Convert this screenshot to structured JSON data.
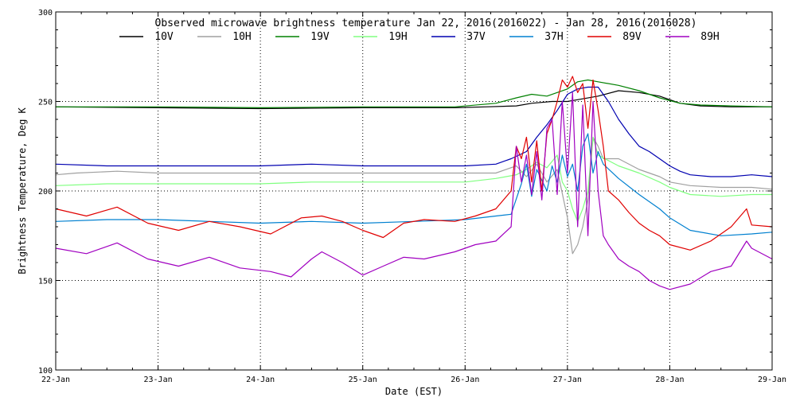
{
  "chart_data": {
    "type": "line",
    "title": "Observed microwave brightness temperature Jan 22, 2016(2016022) - Jan 28, 2016(2016028)",
    "xlabel": "Date (EST)",
    "ylabel": "Brightness Temperature, Deg K",
    "xlim": [
      0,
      7
    ],
    "x_ticks": [
      0,
      1,
      2,
      3,
      4,
      5,
      6,
      7
    ],
    "x_tick_labels": [
      "22-Jan",
      "23-Jan",
      "24-Jan",
      "25-Jan",
      "26-Jan",
      "27-Jan",
      "28-Jan",
      "29-Jan"
    ],
    "ylim": [
      100,
      300
    ],
    "y_ticks": [
      100,
      150,
      200,
      250,
      300
    ],
    "grid": true,
    "legend": "top",
    "series": [
      {
        "name": "10V",
        "color": "#000000",
        "x": [
          0,
          1,
          2,
          3,
          3.9,
          4.2,
          4.5,
          4.65,
          4.85,
          5.0,
          5.1,
          5.3,
          5.5,
          5.7,
          5.9,
          6.1,
          6.3,
          6.6,
          7.0
        ],
        "y": [
          247,
          246.5,
          246,
          246.5,
          246.5,
          247,
          247.5,
          249,
          250,
          250,
          251,
          253,
          256,
          255,
          253,
          249,
          247.5,
          247,
          247
        ]
      },
      {
        "name": "10H",
        "color": "#a0a0a0",
        "x": [
          0,
          0.2,
          0.6,
          1.0,
          1.5,
          2.0,
          2.5,
          3.0,
          3.5,
          4.0,
          4.3,
          4.5,
          4.6,
          4.7,
          4.8,
          4.9,
          5.0,
          5.05,
          5.1,
          5.15,
          5.2,
          5.25,
          5.3,
          5.35,
          5.5,
          5.7,
          5.9,
          6.0,
          6.2,
          6.5,
          6.8,
          7.0
        ],
        "y": [
          209,
          210,
          211,
          210,
          210,
          210,
          210,
          210,
          210,
          210,
          210,
          214,
          208,
          215,
          205,
          212,
          185,
          165,
          170,
          180,
          195,
          230,
          225,
          218,
          218,
          212,
          208,
          205,
          203,
          202,
          202,
          201
        ]
      },
      {
        "name": "19V",
        "color": "#008000",
        "x": [
          0,
          1,
          2,
          3,
          3.9,
          4.3,
          4.5,
          4.65,
          4.8,
          4.9,
          5.0,
          5.1,
          5.2,
          5.3,
          5.5,
          5.7,
          5.9,
          6.1,
          6.3,
          6.6,
          7.0
        ],
        "y": [
          247,
          247,
          246.5,
          247,
          247,
          249,
          252,
          254,
          253,
          255,
          257,
          261,
          262,
          261,
          259,
          256,
          252,
          249,
          248,
          247.5,
          247
        ]
      },
      {
        "name": "19H",
        "color": "#80ff80",
        "x": [
          0,
          0.5,
          1.0,
          1.5,
          2.0,
          2.5,
          3.0,
          3.5,
          4.0,
          4.3,
          4.5,
          4.6,
          4.7,
          4.8,
          4.9,
          4.95,
          5.0,
          5.05,
          5.1,
          5.15,
          5.2,
          5.25,
          5.3,
          5.5,
          5.7,
          5.9,
          6.0,
          6.2,
          6.5,
          6.8,
          7.0
        ],
        "y": [
          203,
          204,
          204,
          204,
          204,
          205,
          205,
          205,
          205,
          207,
          209,
          212,
          216,
          213,
          220,
          205,
          200,
          190,
          183,
          190,
          200,
          230,
          220,
          214,
          210,
          205,
          202,
          198,
          197,
          198,
          198
        ]
      },
      {
        "name": "37V",
        "color": "#0000b0",
        "x": [
          0,
          0.5,
          1.0,
          1.5,
          2.0,
          2.5,
          3.0,
          3.5,
          4.0,
          4.3,
          4.45,
          4.6,
          4.7,
          4.8,
          4.9,
          5.0,
          5.1,
          5.2,
          5.3,
          5.4,
          5.5,
          5.6,
          5.7,
          5.8,
          5.9,
          6.0,
          6.1,
          6.2,
          6.4,
          6.6,
          6.8,
          7.0
        ],
        "y": [
          215,
          214,
          214,
          214,
          214,
          215,
          214,
          214,
          214,
          215,
          218,
          222,
          230,
          237,
          245,
          254,
          257,
          258,
          258,
          250,
          240,
          232,
          225,
          222,
          218,
          214,
          211,
          209,
          208,
          208,
          209,
          208
        ]
      },
      {
        "name": "37H",
        "color": "#0080d0",
        "x": [
          0,
          0.5,
          1.0,
          1.5,
          2.0,
          2.5,
          3.0,
          3.5,
          4.0,
          4.3,
          4.45,
          4.55,
          4.6,
          4.65,
          4.7,
          4.8,
          4.85,
          4.9,
          4.95,
          5.0,
          5.05,
          5.1,
          5.15,
          5.2,
          5.25,
          5.3,
          5.35,
          5.5,
          5.7,
          5.9,
          6.0,
          6.2,
          6.5,
          6.8,
          7.0
        ],
        "y": [
          183,
          184,
          184,
          183,
          182,
          183,
          182,
          183,
          184,
          186,
          187,
          204,
          215,
          197,
          212,
          200,
          214,
          205,
          220,
          208,
          215,
          200,
          225,
          232,
          210,
          222,
          215,
          207,
          198,
          190,
          185,
          178,
          175,
          176,
          177
        ]
      },
      {
        "name": "89V",
        "color": "#e00000",
        "x": [
          0,
          0.3,
          0.6,
          0.9,
          1.2,
          1.5,
          1.8,
          2.1,
          2.4,
          2.6,
          2.8,
          3.0,
          3.2,
          3.4,
          3.6,
          3.9,
          4.1,
          4.3,
          4.45,
          4.5,
          4.55,
          4.6,
          4.65,
          4.7,
          4.75,
          4.8,
          4.85,
          4.9,
          4.95,
          5.0,
          5.05,
          5.1,
          5.15,
          5.2,
          5.25,
          5.3,
          5.35,
          5.4,
          5.5,
          5.6,
          5.7,
          5.8,
          5.9,
          6.0,
          6.2,
          6.4,
          6.6,
          6.75,
          6.8,
          7.0
        ],
        "y": [
          190,
          186,
          191,
          182,
          178,
          183,
          180,
          176,
          185,
          186,
          183,
          178,
          174,
          182,
          184,
          183,
          186,
          190,
          200,
          225,
          218,
          230,
          205,
          228,
          200,
          232,
          240,
          250,
          262,
          258,
          264,
          255,
          260,
          235,
          262,
          245,
          225,
          200,
          195,
          188,
          182,
          178,
          175,
          170,
          167,
          172,
          180,
          190,
          181,
          180
        ]
      },
      {
        "name": "89H",
        "color": "#a000c0",
        "x": [
          0,
          0.3,
          0.6,
          0.9,
          1.2,
          1.5,
          1.8,
          2.1,
          2.3,
          2.5,
          2.6,
          2.8,
          3.0,
          3.2,
          3.4,
          3.6,
          3.9,
          4.1,
          4.3,
          4.45,
          4.5,
          4.55,
          4.6,
          4.65,
          4.7,
          4.75,
          4.8,
          4.85,
          4.9,
          4.95,
          5.0,
          5.05,
          5.1,
          5.15,
          5.2,
          5.25,
          5.3,
          5.35,
          5.4,
          5.5,
          5.6,
          5.7,
          5.8,
          5.9,
          6.0,
          6.2,
          6.4,
          6.6,
          6.75,
          6.8,
          7.0
        ],
        "y": [
          168,
          165,
          171,
          162,
          158,
          163,
          157,
          155,
          152,
          162,
          166,
          160,
          153,
          158,
          163,
          162,
          166,
          170,
          172,
          180,
          225,
          205,
          220,
          198,
          222,
          195,
          235,
          240,
          198,
          250,
          210,
          255,
          180,
          248,
          175,
          250,
          200,
          175,
          170,
          162,
          158,
          155,
          150,
          147,
          145,
          148,
          155,
          158,
          172,
          168,
          162
        ]
      }
    ]
  }
}
